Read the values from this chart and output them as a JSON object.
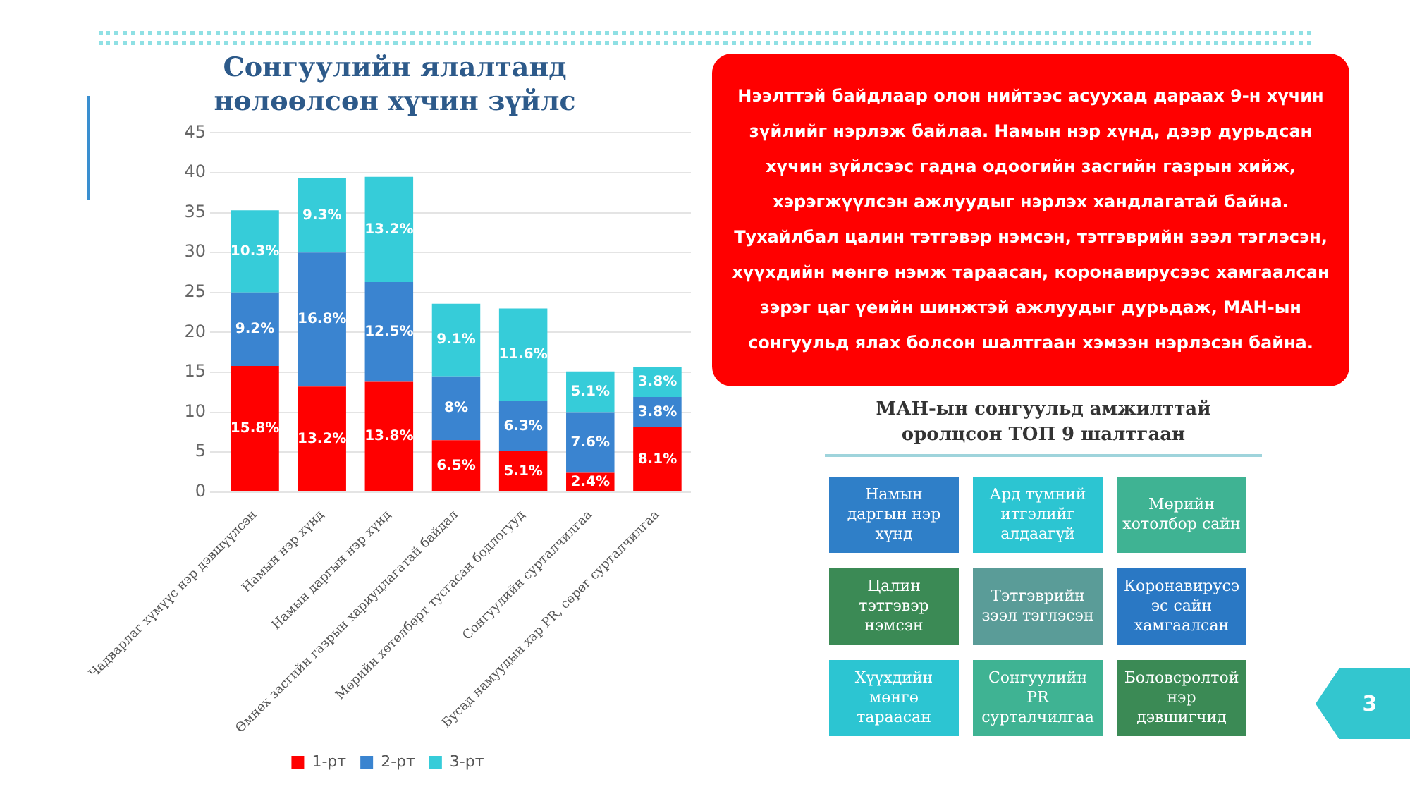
{
  "chart_data": [
    {
      "type": "bar",
      "title": "Сонгуулийн ялалтанд нөлөөлсөн хүчин зүйлс",
      "stacked": true,
      "categories": [
        "Чадварлаг хүмүүс нэр дэвшүүлсэн",
        "Намын нэр хүнд",
        "Намын даргын нэр хүнд",
        "Өмнөх засгийн газрын хариуцлагатай байдал",
        "Мөрийн хөтөлбөрт тусгасан бодлогууд",
        "Сонгуулийн сурталчилгаа",
        "Бусад намуудын хар PR, сөрөг сурталчилгаа"
      ],
      "series": [
        {
          "name": "1-рт",
          "color": "#ff0000",
          "values": [
            15.8,
            13.2,
            13.8,
            6.5,
            5.1,
            2.4,
            8.1
          ],
          "value_labels": [
            "15.8%",
            "13.2%",
            "13.8%",
            "6.5%",
            "5.1%",
            "2.4%",
            "8.1%"
          ]
        },
        {
          "name": "2-рт",
          "color": "#3a84d0",
          "values": [
            9.2,
            16.8,
            12.5,
            8,
            6.3,
            7.6,
            3.8
          ],
          "value_labels": [
            "9.2%",
            "16.8%",
            "12.5%",
            "8%",
            "6.3%",
            "7.6%",
            "3.8%"
          ]
        },
        {
          "name": "3-рт",
          "color": "#36ccd9",
          "values": [
            10.3,
            9.3,
            13.2,
            9.1,
            11.6,
            5.1,
            3.8
          ],
          "value_labels": [
            "10.3%",
            "9.3%",
            "13.2%",
            "9.1%",
            "11.6%",
            "5.1%",
            "3.8%"
          ]
        }
      ],
      "ylim": [
        0,
        45
      ],
      "yticks": [
        0,
        5,
        10,
        15,
        20,
        25,
        30,
        35,
        40,
        45
      ],
      "grid": "y",
      "legend": "bottom"
    },
    {
      "type": "other",
      "annotations": [
        "Нээлттэй байдлаар олон нийтээс асуухад дараах 9-н хүчин зүйлийг нэрлэж байлаа. Намын нэр хүнд, дээр дурьдсан хүчин зүйлсээс гадна одоогийн засгийн газрын хийж, хэрэгжүүлсэн ажлуудыг нэрлэх хандлагатай байна. Тухайлбал цалин тэтгэвэр нэмсэн, тэтгэврийн зээл тэглэсэн, хүүхдийн мөнгө нэмж тараасан, коронавирусээс хамгаалсан зэрэг цаг үеийн шинжтэй ажлуудыг дурьдаж, МАН-ын сонгуульд ялах болсон шалтгаан хэмээн нэрлэсэн байна."
      ]
    },
    {
      "type": "other",
      "title": "МАН-ын сонгуульд амжилттай оролцсон ТОП 9 шалтгаан",
      "annotations": [
        "Намын даргын нэр хүнд",
        "Ард түмний итгэлийг алдаагүй",
        "Мөрийн хөтөлбөр сайн",
        "Цалин тэтгэвэр нэмсэн",
        "Тэтгэврийн зээл тэглэсэн",
        "Коронавирусээс сайн хамгаалсан",
        "Хүүхдийн мөнгө тараасан",
        "Сонгуулийн PR сурталчилгаа",
        "Боловсролтой нэр дэвшигчид"
      ]
    },
    {
      "type": "other",
      "annotations": [
        "3"
      ]
    }
  ]
}
